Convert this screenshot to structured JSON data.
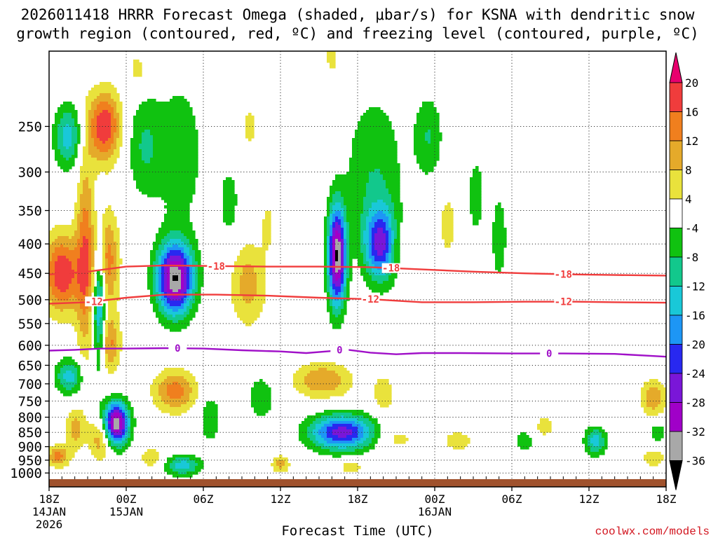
{
  "chart_data": {
    "type": "heatmap",
    "title_line1": "2026011418 HRRR Forecast Omega (shaded, μbar/s) for KSNA with dendritic snow",
    "title_line2": "growth region (contoured, red, ºC) and freezing level (contoured, purple, ºC)",
    "xlabel": "Forecast Time (UTC)",
    "ylabel": "",
    "credit": "coolwx.com/models",
    "x_range_hours": [
      0,
      48
    ],
    "y_range_hpa": [
      1025,
      185
    ],
    "y_scale": "log-pressure, inverted",
    "x_ticks": [
      {
        "hour": 0,
        "lines": [
          "18Z",
          "14JAN",
          "2026"
        ]
      },
      {
        "hour": 6,
        "lines": [
          "00Z",
          "15JAN"
        ]
      },
      {
        "hour": 12,
        "lines": [
          "06Z"
        ]
      },
      {
        "hour": 18,
        "lines": [
          "12Z"
        ]
      },
      {
        "hour": 24,
        "lines": [
          "18Z"
        ]
      },
      {
        "hour": 30,
        "lines": [
          "00Z",
          "16JAN"
        ]
      },
      {
        "hour": 36,
        "lines": [
          "06Z"
        ]
      },
      {
        "hour": 42,
        "lines": [
          "12Z"
        ]
      },
      {
        "hour": 48,
        "lines": [
          "18Z"
        ]
      }
    ],
    "y_ticks": [
      250,
      300,
      350,
      400,
      450,
      500,
      550,
      600,
      650,
      700,
      750,
      800,
      850,
      900,
      950,
      1000
    ],
    "colorbar": {
      "labels": [
        "20",
        "16",
        "12",
        "8",
        "4",
        "-4",
        "-8",
        "-12",
        "-16",
        "-20",
        "-24",
        "-28",
        "-32",
        "-36"
      ],
      "bands": [
        {
          "color": "#e8006e",
          "from": 24,
          "to": 20
        },
        {
          "color": "#f03c3c",
          "from": 20,
          "to": 16
        },
        {
          "color": "#f07f1e",
          "from": 16,
          "to": 12
        },
        {
          "color": "#e5aa2a",
          "from": 12,
          "to": 8
        },
        {
          "color": "#e9e23c",
          "from": 8,
          "to": 4
        },
        {
          "color": "#ffffff",
          "from": 4,
          "to": -4
        },
        {
          "color": "#10c210",
          "from": -4,
          "to": -8
        },
        {
          "color": "#12c88c",
          "from": -8,
          "to": -12
        },
        {
          "color": "#19c8d8",
          "from": -12,
          "to": -16
        },
        {
          "color": "#1d96f5",
          "from": -16,
          "to": -20
        },
        {
          "color": "#2828f0",
          "from": -20,
          "to": -24
        },
        {
          "color": "#7a16d8",
          "from": -24,
          "to": -28
        },
        {
          "color": "#a000c8",
          "from": -28,
          "to": -32
        },
        {
          "color": "#a8a8a8",
          "from": -32,
          "to": -36
        },
        {
          "color": "#000000",
          "from": -36,
          "to": -40
        }
      ]
    },
    "omega_features": [
      {
        "hour": 1.5,
        "p": 260,
        "w": 0.8,
        "h": 0.09,
        "peak": -14
      },
      {
        "hour": 1.0,
        "p": 450,
        "w": 1.0,
        "h": 0.11,
        "peak": 20
      },
      {
        "hour": 0.7,
        "p": 935,
        "w": 0.6,
        "h": 0.03,
        "peak": 14
      },
      {
        "hour": 1.6,
        "p": 680,
        "w": 0.8,
        "h": 0.05,
        "peak": -14
      },
      {
        "hour": 2.8,
        "p": 420,
        "w": 0.5,
        "h": 0.3,
        "peak": 14
      },
      {
        "hour": 4.3,
        "p": 250,
        "w": 0.9,
        "h": 0.1,
        "peak": 20
      },
      {
        "hour": 4.4,
        "p": 430,
        "w": 0.7,
        "h": 0.14,
        "peak": 16
      },
      {
        "hour": 4.7,
        "p": 600,
        "w": 0.6,
        "h": 0.08,
        "peak": 12
      },
      {
        "hour": 3.9,
        "p": 500,
        "w": 0.35,
        "h": 0.18,
        "peak": -22
      },
      {
        "hour": 5.2,
        "p": 820,
        "w": 0.7,
        "h": 0.06,
        "peak": -36
      },
      {
        "hour": 4.0,
        "p": 870,
        "w": 0.6,
        "h": 0.06,
        "peak": 12
      },
      {
        "hour": 2.0,
        "p": 840,
        "w": 0.5,
        "h": 0.06,
        "peak": 10
      },
      {
        "hour": 6.9,
        "p": 200,
        "w": 0.6,
        "h": 0.06,
        "peak": 6
      },
      {
        "hour": 7.4,
        "p": 270,
        "w": 1.0,
        "h": 0.15,
        "peak": -8
      },
      {
        "hour": 9.8,
        "p": 460,
        "w": 1.0,
        "h": 0.1,
        "peak": -36
      },
      {
        "hour": 10.2,
        "p": 280,
        "w": 1.3,
        "h": 0.22,
        "peak": -7
      },
      {
        "hour": 9.8,
        "p": 720,
        "w": 1.2,
        "h": 0.06,
        "peak": 14
      },
      {
        "hour": 10.4,
        "p": 970,
        "w": 1.0,
        "h": 0.03,
        "peak": -14
      },
      {
        "hour": 8.0,
        "p": 940,
        "w": 0.6,
        "h": 0.03,
        "peak": 8
      },
      {
        "hour": 15.5,
        "p": 470,
        "w": 1.0,
        "h": 0.12,
        "peak": 10
      },
      {
        "hour": 14.0,
        "p": 340,
        "w": 0.6,
        "h": 0.12,
        "peak": -6
      },
      {
        "hour": 12.5,
        "p": 800,
        "w": 0.6,
        "h": 0.08,
        "peak": -7
      },
      {
        "hour": 16.5,
        "p": 740,
        "w": 0.7,
        "h": 0.06,
        "peak": -8
      },
      {
        "hour": 15.6,
        "p": 250,
        "w": 0.4,
        "h": 0.06,
        "peak": 6
      },
      {
        "hour": 17.0,
        "p": 370,
        "w": 0.4,
        "h": 0.08,
        "peak": 5
      },
      {
        "hour": 18.0,
        "p": 965,
        "w": 0.5,
        "h": 0.025,
        "peak": 10
      },
      {
        "hour": 22.4,
        "p": 420,
        "w": 0.5,
        "h": 0.14,
        "peak": -36
      },
      {
        "hour": 25.8,
        "p": 400,
        "w": 0.9,
        "h": 0.1,
        "peak": -24
      },
      {
        "hour": 25.3,
        "p": 300,
        "w": 1.6,
        "h": 0.22,
        "peak": -8
      },
      {
        "hour": 21.3,
        "p": 690,
        "w": 1.6,
        "h": 0.05,
        "peak": 12
      },
      {
        "hour": 22.8,
        "p": 850,
        "w": 1.8,
        "h": 0.05,
        "peak": -26
      },
      {
        "hour": 26.0,
        "p": 730,
        "w": 0.6,
        "h": 0.06,
        "peak": 7
      },
      {
        "hour": 22.0,
        "p": 190,
        "w": 0.5,
        "h": 0.07,
        "peak": 5
      },
      {
        "hour": 23.5,
        "p": 975,
        "w": 0.6,
        "h": 0.02,
        "peak": 8
      },
      {
        "hour": 27.0,
        "p": 400,
        "w": 0.5,
        "h": 0.07,
        "peak": 5
      },
      {
        "hour": 27.0,
        "p": 870,
        "w": 1.1,
        "h": 0.035,
        "peak": 6
      },
      {
        "hour": 29.5,
        "p": 260,
        "w": 0.8,
        "h": 0.12,
        "peak": -8
      },
      {
        "hour": 31.0,
        "p": 370,
        "w": 0.5,
        "h": 0.1,
        "peak": 6
      },
      {
        "hour": 33.2,
        "p": 330,
        "w": 0.4,
        "h": 0.1,
        "peak": -8
      },
      {
        "hour": 35.0,
        "p": 390,
        "w": 0.4,
        "h": 0.12,
        "peak": -8
      },
      {
        "hour": 38.5,
        "p": 830,
        "w": 0.6,
        "h": 0.035,
        "peak": 6
      },
      {
        "hour": 42.5,
        "p": 880,
        "w": 0.6,
        "h": 0.04,
        "peak": -14
      },
      {
        "hour": 47.0,
        "p": 740,
        "w": 0.7,
        "h": 0.05,
        "peak": 12
      },
      {
        "hour": 47.3,
        "p": 850,
        "w": 0.5,
        "h": 0.03,
        "peak": -7
      },
      {
        "hour": 47.0,
        "p": 940,
        "w": 0.6,
        "h": 0.025,
        "peak": 8
      },
      {
        "hour": 31.8,
        "p": 880,
        "w": 1.0,
        "h": 0.035,
        "peak": 6
      },
      {
        "hour": 37.0,
        "p": 880,
        "w": 0.6,
        "h": 0.04,
        "peak": -6
      }
    ],
    "contours": [
      {
        "name": "dgz-minus18",
        "color": "#f03c3c",
        "label": "-18",
        "label_hours": [
          13.0,
          26.6,
          40.0
        ],
        "points": [
          [
            0,
            452
          ],
          [
            3,
            447
          ],
          [
            6,
            438
          ],
          [
            9,
            436
          ],
          [
            13,
            437
          ],
          [
            17,
            438
          ],
          [
            21,
            438
          ],
          [
            25,
            439
          ],
          [
            29,
            443
          ],
          [
            33,
            447
          ],
          [
            37,
            450
          ],
          [
            41,
            452
          ],
          [
            44,
            453
          ],
          [
            48,
            454
          ]
        ]
      },
      {
        "name": "dgz-minus12",
        "color": "#f03c3c",
        "label": "-12",
        "label_hours": [
          3.5,
          25.0,
          40.0
        ],
        "points": [
          [
            0,
            508
          ],
          [
            3,
            505
          ],
          [
            6,
            496
          ],
          [
            9,
            490
          ],
          [
            13,
            490
          ],
          [
            17,
            492
          ],
          [
            21,
            496
          ],
          [
            25,
            499
          ],
          [
            29,
            505
          ],
          [
            33,
            505
          ],
          [
            37,
            504
          ],
          [
            41,
            504
          ],
          [
            44,
            505
          ],
          [
            48,
            506
          ]
        ]
      },
      {
        "name": "freezing-level",
        "color": "#a010c8",
        "label": "0",
        "label_hours": [
          10.0,
          22.6,
          38.9
        ],
        "points": [
          [
            0,
            613
          ],
          [
            2,
            611
          ],
          [
            4,
            608
          ],
          [
            6,
            608
          ],
          [
            9,
            607
          ],
          [
            12,
            608
          ],
          [
            15,
            612
          ],
          [
            18,
            615
          ],
          [
            20,
            619
          ],
          [
            22,
            614
          ],
          [
            23,
            610
          ],
          [
            25,
            618
          ],
          [
            27,
            622
          ],
          [
            29,
            619
          ],
          [
            32,
            619
          ],
          [
            36,
            620
          ],
          [
            40,
            620
          ],
          [
            44,
            621
          ],
          [
            48,
            628
          ]
        ]
      }
    ],
    "surface_color": "#a0522d"
  }
}
